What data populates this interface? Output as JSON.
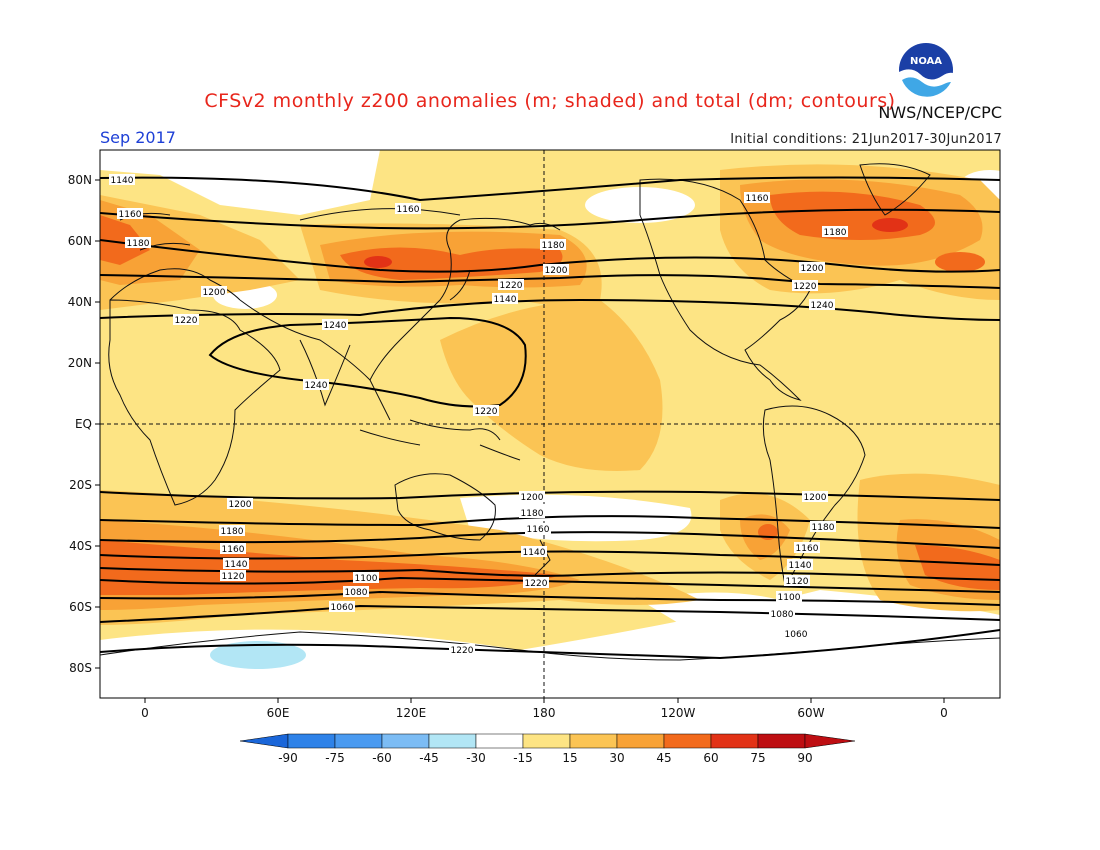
{
  "title": "CFSv2 monthly z200 anomalies (m; shaded) and total (dm; contours)",
  "agency": "NWS/NCEP/CPC",
  "valid_month": "Sep 2017",
  "initial_conditions": "Initial conditions: 21Jun2017-30Jun2017",
  "logo_text": "NOAA",
  "lat_ticks": [
    "80N",
    "60N",
    "40N",
    "20N",
    "EQ",
    "20S",
    "40S",
    "60S",
    "80S"
  ],
  "lon_ticks": [
    "0",
    "60E",
    "120E",
    "180",
    "120W",
    "60W",
    "0"
  ],
  "colorbar": {
    "labels": [
      "-90",
      "-75",
      "-60",
      "-45",
      "-30",
      "-15",
      "15",
      "30",
      "45",
      "60",
      "75",
      "90"
    ],
    "colors": [
      "#1a66d9",
      "#2e82e8",
      "#4a9af0",
      "#7cbcf4",
      "#b2e6f5",
      "#ffffff",
      "#fde484",
      "#fbc454",
      "#f8a236",
      "#f26a1c",
      "#e23216",
      "#be0e12"
    ]
  },
  "contour_labels": [
    "1140",
    "1160",
    "1180",
    "1200",
    "1220",
    "1240",
    "1160",
    "1180",
    "1200",
    "1220",
    "1140",
    "1160",
    "1180",
    "1200",
    "1220",
    "1240",
    "1240",
    "1220",
    "1200",
    "1180",
    "1160",
    "1140",
    "1120",
    "1100",
    "1080",
    "1060",
    "1220",
    "1200",
    "1180",
    "1160",
    "1140",
    "1220",
    "1200",
    "1180",
    "1160",
    "1140",
    "1120",
    "1100",
    "1080",
    "1060"
  ]
}
